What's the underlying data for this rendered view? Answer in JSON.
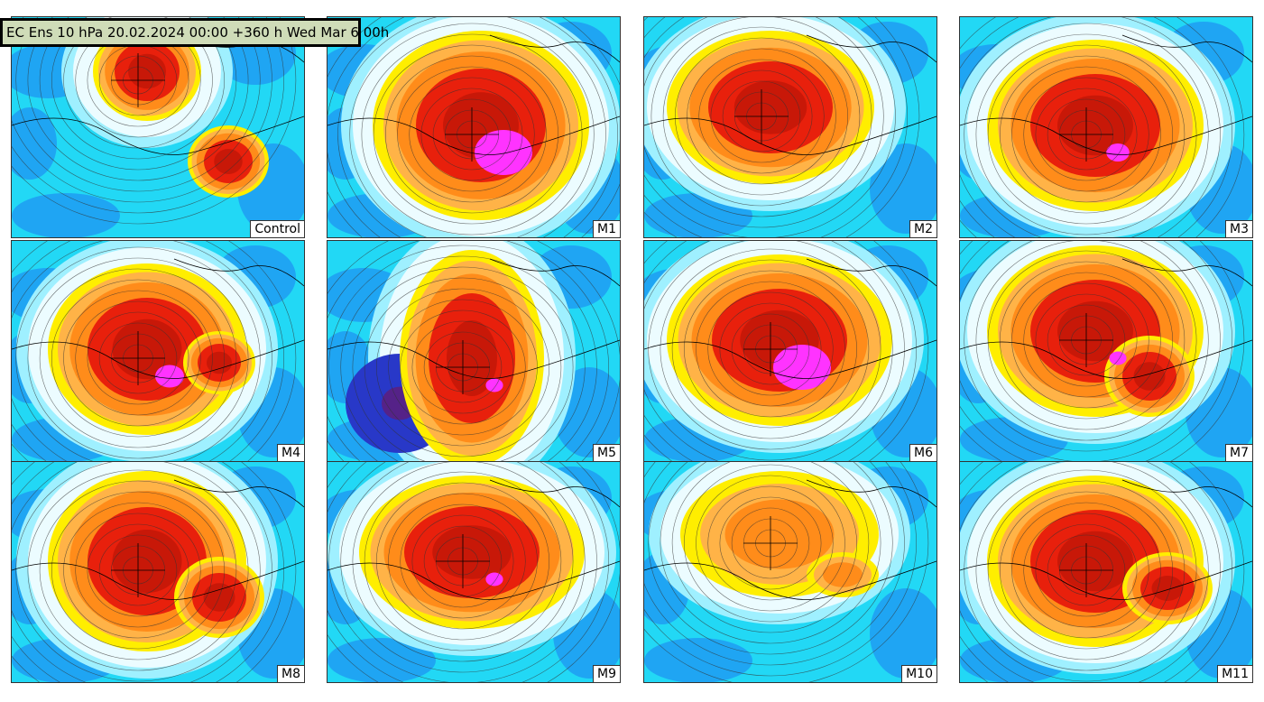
{
  "title": "EC Ens 10 hPa 20.02.2024 00:00 +360 h Wed Mar 6 00h",
  "panels": [
    {
      "label": "Control"
    },
    {
      "label": "M1"
    },
    {
      "label": "M2"
    },
    {
      "label": "M3"
    },
    {
      "label": "M4"
    },
    {
      "label": "M5"
    },
    {
      "label": "M6"
    },
    {
      "label": "M7"
    },
    {
      "label": "M8"
    },
    {
      "label": "M9"
    },
    {
      "label": "M10"
    },
    {
      "label": "M11"
    }
  ],
  "colors": {
    "cold_light": "#9ff0ff",
    "cold": "#22d8f5",
    "cold_deep": "#1e7cf0",
    "cold_deepest": "#2838c8",
    "warm_yellow": "#ffee00",
    "warm_orange": "#ff8c1a",
    "warm_red": "#e8200c",
    "warm_magenta": "#ff33ff",
    "header_bg": "#cfdcb8"
  }
}
